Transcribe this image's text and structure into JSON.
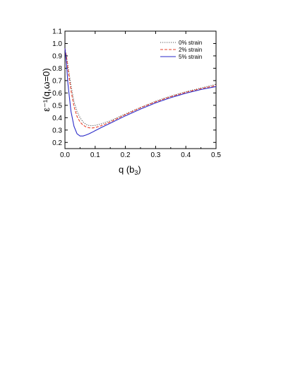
{
  "chart_data": {
    "type": "line",
    "title": "",
    "xlabel": "q  (b3)",
    "xlabel_main": "q  (b",
    "xlabel_sub": "3",
    "xlabel_close": ")",
    "ylabel": "ε⁻¹(q,ω=0)",
    "xlim": [
      0.0,
      0.5
    ],
    "ylim": [
      0.15,
      1.1
    ],
    "xticks": [
      "0.0",
      "0.1",
      "0.2",
      "0.3",
      "0.4",
      "0.5"
    ],
    "yticks": [
      "0.2",
      "0.3",
      "0.4",
      "0.5",
      "0.6",
      "0.7",
      "0.8",
      "0.9",
      "1.0",
      "1.1"
    ],
    "grid": false,
    "legend": {
      "placement": "top-right"
    },
    "series": [
      {
        "name": "0% strain",
        "color": "#555555",
        "style": "dotted",
        "x": [
          0.0,
          0.005,
          0.01,
          0.02,
          0.03,
          0.04,
          0.05,
          0.06,
          0.07,
          0.08,
          0.09,
          0.1,
          0.12,
          0.15,
          0.2,
          0.25,
          0.3,
          0.35,
          0.4,
          0.45,
          0.5
        ],
        "y": [
          0.96,
          0.9,
          0.82,
          0.66,
          0.53,
          0.45,
          0.4,
          0.365,
          0.345,
          0.337,
          0.335,
          0.338,
          0.35,
          0.375,
          0.43,
          0.483,
          0.533,
          0.575,
          0.61,
          0.64,
          0.67
        ]
      },
      {
        "name": "2% strain",
        "color": "#e8402a",
        "style": "dashed",
        "x": [
          0.0,
          0.005,
          0.01,
          0.02,
          0.03,
          0.04,
          0.05,
          0.06,
          0.07,
          0.08,
          0.09,
          0.1,
          0.12,
          0.15,
          0.2,
          0.25,
          0.3,
          0.35,
          0.4,
          0.45,
          0.5
        ],
        "y": [
          0.96,
          0.89,
          0.79,
          0.62,
          0.49,
          0.41,
          0.365,
          0.34,
          0.325,
          0.318,
          0.317,
          0.32,
          0.335,
          0.365,
          0.425,
          0.48,
          0.528,
          0.57,
          0.605,
          0.635,
          0.66
        ]
      },
      {
        "name": "5% strain",
        "color": "#2a2ac8",
        "style": "solid",
        "x": [
          0.0,
          0.005,
          0.01,
          0.02,
          0.03,
          0.04,
          0.05,
          0.06,
          0.07,
          0.08,
          0.09,
          0.1,
          0.12,
          0.15,
          0.2,
          0.25,
          0.3,
          0.35,
          0.4,
          0.45,
          0.5
        ],
        "y": [
          0.96,
          0.84,
          0.67,
          0.45,
          0.33,
          0.27,
          0.252,
          0.252,
          0.26,
          0.27,
          0.282,
          0.295,
          0.32,
          0.355,
          0.415,
          0.47,
          0.52,
          0.562,
          0.598,
          0.628,
          0.652
        ]
      }
    ]
  }
}
